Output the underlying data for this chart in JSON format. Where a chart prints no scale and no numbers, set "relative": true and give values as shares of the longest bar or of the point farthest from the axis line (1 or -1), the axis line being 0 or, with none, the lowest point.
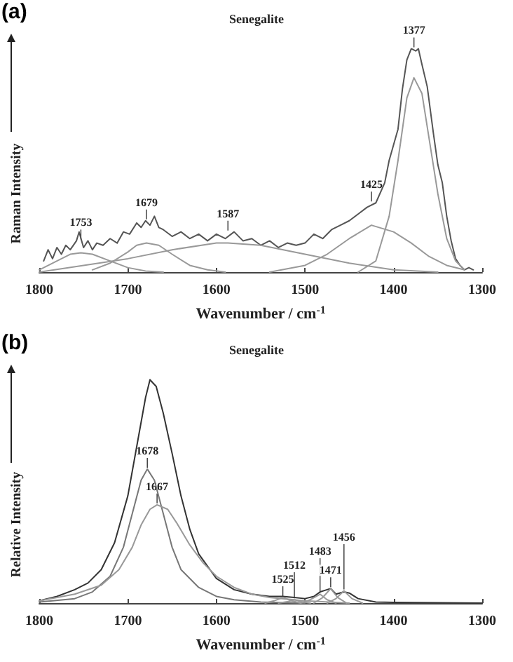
{
  "chart_data": [
    {
      "type": "line",
      "title": "Senegalite",
      "xlabel": "Wavenumber / cm$^{-1}$",
      "ylabel": "Raman Intensity",
      "relative": true,
      "xlim": [
        1800,
        1300
      ],
      "xticks": [
        1800,
        1700,
        1600,
        1500,
        1400,
        1300
      ],
      "tick_labels": "x",
      "grid": false,
      "marker": "none",
      "line_style": "solid",
      "annotations": [
        "(a)",
        {
          "text": "1753",
          "x": 1753,
          "y": 0.14
        },
        {
          "text": "1679",
          "x": 1679,
          "y": 0.23
        },
        {
          "text": "1587",
          "x": 1587,
          "y": 0.18
        },
        {
          "text": "1425",
          "x": 1425,
          "y": 0.31
        },
        {
          "text": "1377",
          "x": 1377,
          "y": 1.0
        }
      ],
      "series": [
        {
          "color": "#555555",
          "x": [
            1795,
            1790,
            1785,
            1780,
            1775,
            1770,
            1765,
            1758,
            1755,
            1750,
            1745,
            1740,
            1735,
            1728,
            1720,
            1712,
            1705,
            1698,
            1690,
            1685,
            1680,
            1675,
            1670,
            1665,
            1660,
            1650,
            1640,
            1630,
            1620,
            1610,
            1600,
            1590,
            1580,
            1570,
            1560,
            1550,
            1540,
            1530,
            1520,
            1510,
            1500,
            1490,
            1480,
            1470,
            1460,
            1450,
            1440,
            1430,
            1420,
            1410,
            1405,
            1400,
            1395,
            1390,
            1385,
            1380,
            1375,
            1372,
            1368,
            1362,
            1355,
            1350,
            1345,
            1340,
            1335,
            1330,
            1325,
            1320,
            1315,
            1310
          ],
          "values": [
            0.05,
            0.1,
            0.06,
            0.11,
            0.08,
            0.12,
            0.1,
            0.14,
            0.18,
            0.11,
            0.14,
            0.1,
            0.13,
            0.12,
            0.15,
            0.13,
            0.18,
            0.17,
            0.22,
            0.2,
            0.23,
            0.21,
            0.25,
            0.2,
            0.19,
            0.16,
            0.18,
            0.15,
            0.17,
            0.14,
            0.17,
            0.15,
            0.18,
            0.14,
            0.15,
            0.12,
            0.14,
            0.11,
            0.13,
            0.12,
            0.13,
            0.17,
            0.15,
            0.19,
            0.21,
            0.23,
            0.26,
            0.29,
            0.31,
            0.4,
            0.5,
            0.57,
            0.64,
            0.82,
            0.95,
            1.0,
            0.99,
            1.0,
            0.93,
            0.83,
            0.62,
            0.48,
            0.4,
            0.25,
            0.14,
            0.06,
            0.03,
            0.01,
            0.02,
            0.01
          ]
        },
        {
          "color": "#999999",
          "x": [
            1800,
            1780,
            1765,
            1753,
            1740,
            1720,
            1700,
            1680,
            1660
          ],
          "values": [
            0.01,
            0.05,
            0.08,
            0.086,
            0.08,
            0.05,
            0.02,
            0.005,
            0
          ]
        },
        {
          "color": "#999999",
          "x": [
            1740,
            1720,
            1700,
            1690,
            1679,
            1665,
            1650,
            1630,
            1610,
            1590
          ],
          "values": [
            0.01,
            0.04,
            0.09,
            0.12,
            0.13,
            0.12,
            0.08,
            0.03,
            0.01,
            0
          ]
        },
        {
          "color": "#999999",
          "x": [
            1800,
            1750,
            1700,
            1650,
            1600,
            1587,
            1550,
            1500,
            1450,
            1400,
            1350
          ],
          "values": [
            0,
            0.03,
            0.06,
            0.1,
            0.13,
            0.13,
            0.12,
            0.08,
            0.04,
            0.01,
            0
          ]
        },
        {
          "color": "#999999",
          "x": [
            1540,
            1500,
            1475,
            1450,
            1425,
            1400,
            1380,
            1360,
            1340,
            1320
          ],
          "values": [
            0,
            0.03,
            0.08,
            0.15,
            0.21,
            0.18,
            0.13,
            0.07,
            0.03,
            0.01
          ]
        },
        {
          "color": "#999999",
          "x": [
            1440,
            1420,
            1405,
            1395,
            1385,
            1377,
            1368,
            1360,
            1350,
            1340,
            1330,
            1320
          ],
          "values": [
            0,
            0.05,
            0.25,
            0.5,
            0.78,
            0.87,
            0.8,
            0.6,
            0.35,
            0.15,
            0.05,
            0.01
          ]
        }
      ]
    },
    {
      "type": "line",
      "title": "Senegalite",
      "xlabel": "Wavenumber / cm$^{-1}$",
      "ylabel": "Relative Intensity",
      "relative": true,
      "xlim": [
        1800,
        1300
      ],
      "xticks": [
        1800,
        1700,
        1600,
        1500,
        1400,
        1300
      ],
      "tick_labels": "x",
      "grid": false,
      "marker": "none",
      "line_style": "solid",
      "annotations": [
        "(b)",
        {
          "text": "1678",
          "x": 1678,
          "y": 0.6
        },
        {
          "text": "1667",
          "x": 1667,
          "y": 0.44
        },
        {
          "text": "1525",
          "x": 1525,
          "y": 0.025
        },
        {
          "text": "1512",
          "x": 1512,
          "y": 0.015
        },
        {
          "text": "1483",
          "x": 1483,
          "y": 0.04
        },
        {
          "text": "1471",
          "x": 1471,
          "y": 0.065
        },
        {
          "text": "1456",
          "x": 1456,
          "y": 0.055
        }
      ],
      "series": [
        {
          "color": "#333333",
          "x": [
            1800,
            1780,
            1760,
            1745,
            1730,
            1715,
            1700,
            1690,
            1680,
            1675,
            1668,
            1660,
            1650,
            1640,
            1630,
            1620,
            1600,
            1580,
            1560,
            1540,
            1525,
            1512,
            1500,
            1490,
            1483,
            1475,
            1471,
            1465,
            1456,
            1450,
            1440,
            1420,
            1400,
            1300
          ],
          "values": [
            0.01,
            0.03,
            0.06,
            0.09,
            0.15,
            0.27,
            0.48,
            0.7,
            0.92,
            1.0,
            0.97,
            0.85,
            0.67,
            0.48,
            0.33,
            0.22,
            0.11,
            0.06,
            0.04,
            0.03,
            0.03,
            0.025,
            0.02,
            0.03,
            0.05,
            0.06,
            0.065,
            0.04,
            0.05,
            0.045,
            0.02,
            0.005,
            0.003,
            0
          ]
        },
        {
          "color": "#777777",
          "x": [
            1800,
            1760,
            1740,
            1720,
            1705,
            1695,
            1685,
            1678,
            1670,
            1660,
            1650,
            1640,
            1620,
            1600,
            1580,
            1550,
            1500
          ],
          "values": [
            0.005,
            0.02,
            0.05,
            0.12,
            0.25,
            0.4,
            0.55,
            0.6,
            0.55,
            0.4,
            0.25,
            0.15,
            0.07,
            0.03,
            0.015,
            0.005,
            0
          ]
        },
        {
          "color": "#999999",
          "x": [
            1800,
            1760,
            1730,
            1710,
            1695,
            1685,
            1675,
            1667,
            1655,
            1645,
            1630,
            1615,
            1600,
            1580,
            1560,
            1540,
            1500,
            1450
          ],
          "values": [
            0.01,
            0.04,
            0.08,
            0.15,
            0.25,
            0.35,
            0.42,
            0.44,
            0.42,
            0.36,
            0.26,
            0.18,
            0.12,
            0.07,
            0.04,
            0.025,
            0.01,
            0
          ]
        },
        {
          "color": "#999999",
          "x": [
            1545,
            1535,
            1525,
            1515,
            1505
          ],
          "values": [
            0,
            0.01,
            0.025,
            0.01,
            0
          ]
        },
        {
          "color": "#999999",
          "x": [
            1530,
            1520,
            1512,
            1504,
            1494
          ],
          "values": [
            0,
            0.006,
            0.015,
            0.006,
            0
          ]
        },
        {
          "color": "#999999",
          "x": [
            1505,
            1494,
            1483,
            1475,
            1465
          ],
          "values": [
            0,
            0.015,
            0.04,
            0.015,
            0
          ]
        },
        {
          "color": "#999999",
          "x": [
            1490,
            1480,
            1471,
            1463,
            1453
          ],
          "values": [
            0,
            0.025,
            0.065,
            0.025,
            0
          ]
        },
        {
          "color": "#999999",
          "x": [
            1475,
            1465,
            1456,
            1447,
            1435
          ],
          "values": [
            0,
            0.02,
            0.055,
            0.02,
            0
          ]
        }
      ]
    }
  ]
}
